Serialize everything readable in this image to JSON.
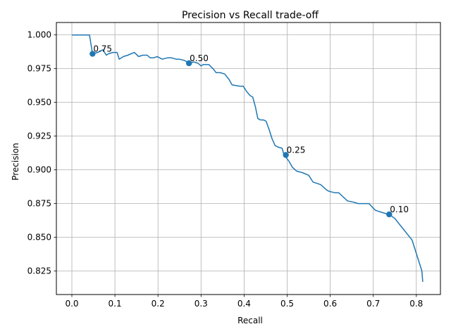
{
  "chart_data": {
    "type": "line",
    "title": "Precision vs Recall trade-off",
    "xlabel": "Recall",
    "ylabel": "Precision",
    "xlim": [
      -0.036,
      0.856
    ],
    "ylim": [
      0.8076,
      1.0092
    ],
    "xticks": [
      "0.0",
      "0.1",
      "0.2",
      "0.3",
      "0.4",
      "0.5",
      "0.6",
      "0.7",
      "0.8"
    ],
    "yticks": [
      "0.825",
      "0.850",
      "0.875",
      "0.900",
      "0.925",
      "0.950",
      "0.975",
      "1.000"
    ],
    "grid": true,
    "line_color": "#1f77b4",
    "series": [
      {
        "x": [
          0.0,
          0.012,
          0.024,
          0.036,
          0.041,
          0.048,
          0.06,
          0.072,
          0.08,
          0.085,
          0.095,
          0.105,
          0.11,
          0.12,
          0.13,
          0.145,
          0.155,
          0.165,
          0.175,
          0.182,
          0.19,
          0.198,
          0.21,
          0.222,
          0.232,
          0.242,
          0.25,
          0.262,
          0.272,
          0.283,
          0.293,
          0.3,
          0.305,
          0.318,
          0.328,
          0.335,
          0.345,
          0.355,
          0.365,
          0.372,
          0.39,
          0.398,
          0.406,
          0.414,
          0.42,
          0.426,
          0.432,
          0.438,
          0.445,
          0.451,
          0.458,
          0.465,
          0.472,
          0.478,
          0.488,
          0.493,
          0.498,
          0.505,
          0.512,
          0.522,
          0.535,
          0.55,
          0.56,
          0.578,
          0.592,
          0.598,
          0.612,
          0.62,
          0.63,
          0.64,
          0.655,
          0.665,
          0.675,
          0.69,
          0.705,
          0.725,
          0.737,
          0.75,
          0.76,
          0.77,
          0.78,
          0.79,
          0.8,
          0.808,
          0.813,
          0.815
        ],
        "y": [
          1.0,
          1.0,
          1.0,
          1.0,
          1.0,
          0.986,
          0.987,
          0.989,
          0.985,
          0.986,
          0.987,
          0.987,
          0.982,
          0.984,
          0.985,
          0.987,
          0.984,
          0.985,
          0.985,
          0.983,
          0.983,
          0.984,
          0.982,
          0.983,
          0.983,
          0.982,
          0.982,
          0.981,
          0.979,
          0.98,
          0.979,
          0.977,
          0.978,
          0.978,
          0.975,
          0.972,
          0.972,
          0.971,
          0.967,
          0.963,
          0.962,
          0.962,
          0.958,
          0.955,
          0.954,
          0.947,
          0.938,
          0.937,
          0.937,
          0.936,
          0.93,
          0.923,
          0.918,
          0.917,
          0.916,
          0.911,
          0.909,
          0.906,
          0.902,
          0.899,
          0.898,
          0.896,
          0.891,
          0.889,
          0.885,
          0.884,
          0.883,
          0.883,
          0.88,
          0.877,
          0.876,
          0.875,
          0.875,
          0.875,
          0.87,
          0.868,
          0.867,
          0.864,
          0.86,
          0.856,
          0.852,
          0.848,
          0.838,
          0.83,
          0.825,
          0.817
        ]
      }
    ],
    "markers": [
      {
        "label": "0.75",
        "x": 0.048,
        "y": 0.986
      },
      {
        "label": "0.50",
        "x": 0.272,
        "y": 0.979
      },
      {
        "label": "0.25",
        "x": 0.497,
        "y": 0.911
      },
      {
        "label": "0.10",
        "x": 0.737,
        "y": 0.867
      }
    ]
  }
}
